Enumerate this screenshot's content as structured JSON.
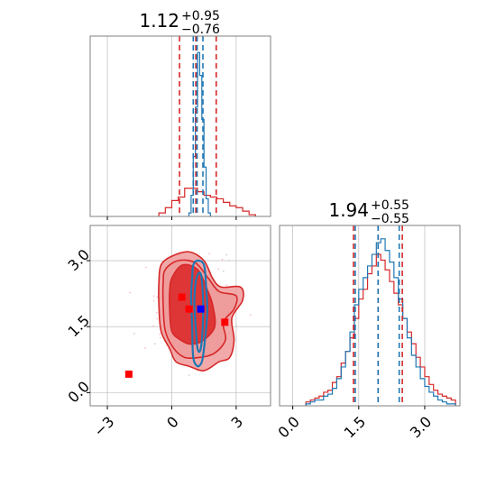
{
  "colors": {
    "red": "#d62728",
    "blue": "#1f77b4",
    "grid": "#b0b0b0",
    "red_fill_light": "#ee9a9a",
    "red_fill_dark": "#dc3030",
    "marker_red": "#ff0000",
    "marker_blue": "#0000ff"
  },
  "chart_data": [
    {
      "type": "histogram",
      "panel": "top-left",
      "title": {
        "value": "1.12",
        "upper": "+0.95",
        "lower": "−0.76"
      },
      "xlim": [
        -3.8,
        4.6
      ],
      "x_ticks": [
        -3,
        0,
        3
      ],
      "tick_labels_shown": false,
      "series": [
        {
          "color": "red",
          "bin_edges": [
            -0.6,
            -0.3,
            0.0,
            0.3,
            0.6,
            0.9,
            1.2,
            1.5,
            1.8,
            2.1,
            2.4,
            2.7,
            3.0,
            3.3,
            3.6,
            3.9
          ],
          "heights": [
            0.02,
            0.05,
            0.09,
            0.11,
            0.16,
            0.16,
            0.14,
            0.12,
            0.11,
            0.1,
            0.08,
            0.06,
            0.05,
            0.03,
            0.01
          ],
          "quantile_lines": [
            0.36,
            1.12,
            2.07
          ]
        },
        {
          "color": "blue",
          "bin_edges": [
            0.8,
            0.9,
            1.0,
            1.1,
            1.2,
            1.3,
            1.4,
            1.5,
            1.6,
            1.7,
            1.8
          ],
          "heights": [
            0.02,
            0.12,
            0.34,
            0.62,
            0.93,
            0.8,
            0.55,
            0.28,
            0.1,
            0.02
          ],
          "quantile_lines": [
            1.0,
            1.18,
            1.45
          ]
        }
      ]
    },
    {
      "type": "histogram",
      "panel": "bottom-right",
      "title": {
        "value": "1.94",
        "upper": "+0.55",
        "lower": "−0.55"
      },
      "xlim": [
        -0.3,
        3.8
      ],
      "x_ticks": [
        0.0,
        1.5,
        3.0
      ],
      "x_tick_labels": [
        "0.0",
        "1.5",
        "3.0"
      ],
      "series": [
        {
          "color": "red",
          "bin_edges": [
            0.3,
            0.4,
            0.5,
            0.6,
            0.7,
            0.8,
            0.9,
            1.0,
            1.1,
            1.2,
            1.3,
            1.4,
            1.5,
            1.6,
            1.7,
            1.8,
            1.9,
            2.0,
            2.1,
            2.2,
            2.3,
            2.4,
            2.5,
            2.6,
            2.7,
            2.8,
            2.9,
            3.0,
            3.1,
            3.2,
            3.3,
            3.4,
            3.5,
            3.6,
            3.7
          ],
          "heights": [
            0.02,
            0.03,
            0.04,
            0.05,
            0.07,
            0.08,
            0.12,
            0.15,
            0.22,
            0.28,
            0.35,
            0.45,
            0.55,
            0.6,
            0.68,
            0.72,
            0.78,
            0.75,
            0.7,
            0.64,
            0.58,
            0.52,
            0.45,
            0.38,
            0.32,
            0.25,
            0.2,
            0.15,
            0.11,
            0.08,
            0.06,
            0.05,
            0.04,
            0.03
          ],
          "quantile_lines": [
            1.38,
            1.94,
            2.49
          ]
        },
        {
          "color": "blue",
          "bin_edges": [
            0.3,
            0.4,
            0.5,
            0.6,
            0.7,
            0.8,
            0.9,
            1.0,
            1.1,
            1.2,
            1.3,
            1.4,
            1.5,
            1.6,
            1.7,
            1.8,
            1.9,
            2.0,
            2.1,
            2.2,
            2.3,
            2.4,
            2.5,
            2.6,
            2.7,
            2.8,
            2.9,
            3.0,
            3.1,
            3.2,
            3.3,
            3.4,
            3.5,
            3.6,
            3.7
          ],
          "heights": [
            0.01,
            0.02,
            0.03,
            0.03,
            0.05,
            0.06,
            0.09,
            0.14,
            0.2,
            0.28,
            0.38,
            0.52,
            0.6,
            0.66,
            0.72,
            0.78,
            0.84,
            0.86,
            0.8,
            0.74,
            0.66,
            0.55,
            0.45,
            0.35,
            0.26,
            0.2,
            0.14,
            0.1,
            0.07,
            0.05,
            0.03,
            0.02,
            0.01,
            0.01
          ],
          "quantile_lines": [
            1.42,
            1.94,
            2.42
          ]
        }
      ]
    },
    {
      "type": "contour",
      "panel": "bottom-left",
      "xlim": [
        -3.8,
        4.6
      ],
      "ylim": [
        -0.3,
        3.8
      ],
      "x_ticks": [
        -3,
        0,
        3
      ],
      "x_tick_labels": [
        "−3",
        "0",
        "3"
      ],
      "y_ticks": [
        0.0,
        1.5,
        3.0
      ],
      "y_tick_labels": [
        "0.0",
        "1.5",
        "3.0"
      ],
      "grid": true,
      "red_contours": {
        "outer": [
          [
            -0.5,
            2.9
          ],
          [
            0.0,
            3.1
          ],
          [
            0.8,
            3.2
          ],
          [
            1.5,
            3.0
          ],
          [
            1.9,
            2.6
          ],
          [
            2.3,
            2.4
          ],
          [
            3.2,
            2.4
          ],
          [
            3.3,
            2.1
          ],
          [
            2.8,
            1.7
          ],
          [
            2.9,
            1.2
          ],
          [
            2.7,
            0.8
          ],
          [
            2.2,
            0.7
          ],
          [
            1.5,
            0.5
          ],
          [
            0.8,
            0.6
          ],
          [
            0.2,
            0.7
          ],
          [
            -0.1,
            1.0
          ],
          [
            -0.5,
            1.4
          ],
          [
            -0.6,
            2.0
          ],
          [
            -0.6,
            2.5
          ]
        ],
        "middle": [
          [
            -0.3,
            2.8
          ],
          [
            0.3,
            3.0
          ],
          [
            1.1,
            2.95
          ],
          [
            1.7,
            2.6
          ],
          [
            2.2,
            2.3
          ],
          [
            3.0,
            2.2
          ],
          [
            2.9,
            1.9
          ],
          [
            2.4,
            1.6
          ],
          [
            2.5,
            1.2
          ],
          [
            2.0,
            0.9
          ],
          [
            1.3,
            0.8
          ],
          [
            0.6,
            0.8
          ],
          [
            0.1,
            1.0
          ],
          [
            -0.3,
            1.4
          ],
          [
            -0.4,
            2.0
          ],
          [
            -0.4,
            2.5
          ]
        ],
        "inner": [
          [
            0.0,
            2.6
          ],
          [
            0.5,
            2.9
          ],
          [
            1.2,
            2.8
          ],
          [
            1.6,
            2.4
          ],
          [
            1.9,
            2.0
          ],
          [
            2.0,
            1.5
          ],
          [
            1.5,
            1.2
          ],
          [
            0.9,
            1.1
          ],
          [
            0.4,
            1.2
          ],
          [
            0.0,
            1.4
          ],
          [
            -0.1,
            1.9
          ],
          [
            -0.1,
            2.3
          ]
        ]
      },
      "blue_contours": {
        "outer": [
          [
            1.0,
            2.9
          ],
          [
            1.2,
            3.0
          ],
          [
            1.5,
            2.9
          ],
          [
            1.6,
            2.4
          ],
          [
            1.65,
            1.8
          ],
          [
            1.5,
            1.0
          ],
          [
            1.4,
            0.7
          ],
          [
            1.2,
            0.6
          ],
          [
            1.0,
            0.8
          ],
          [
            0.95,
            1.5
          ],
          [
            0.9,
            2.2
          ],
          [
            0.95,
            2.6
          ]
        ],
        "inner": [
          [
            1.15,
            2.6
          ],
          [
            1.35,
            2.7
          ],
          [
            1.45,
            2.2
          ],
          [
            1.45,
            1.6
          ],
          [
            1.35,
            1.0
          ],
          [
            1.2,
            1.0
          ],
          [
            1.1,
            1.6
          ],
          [
            1.05,
            2.1
          ]
        ]
      },
      "red_markers": [
        [
          0.47,
          2.17
        ],
        [
          0.8,
          1.9
        ],
        [
          2.47,
          1.6
        ],
        [
          -2.0,
          0.42
        ]
      ],
      "blue_markers": [
        [
          1.35,
          1.9
        ]
      ],
      "scatter_seed": 7
    }
  ]
}
